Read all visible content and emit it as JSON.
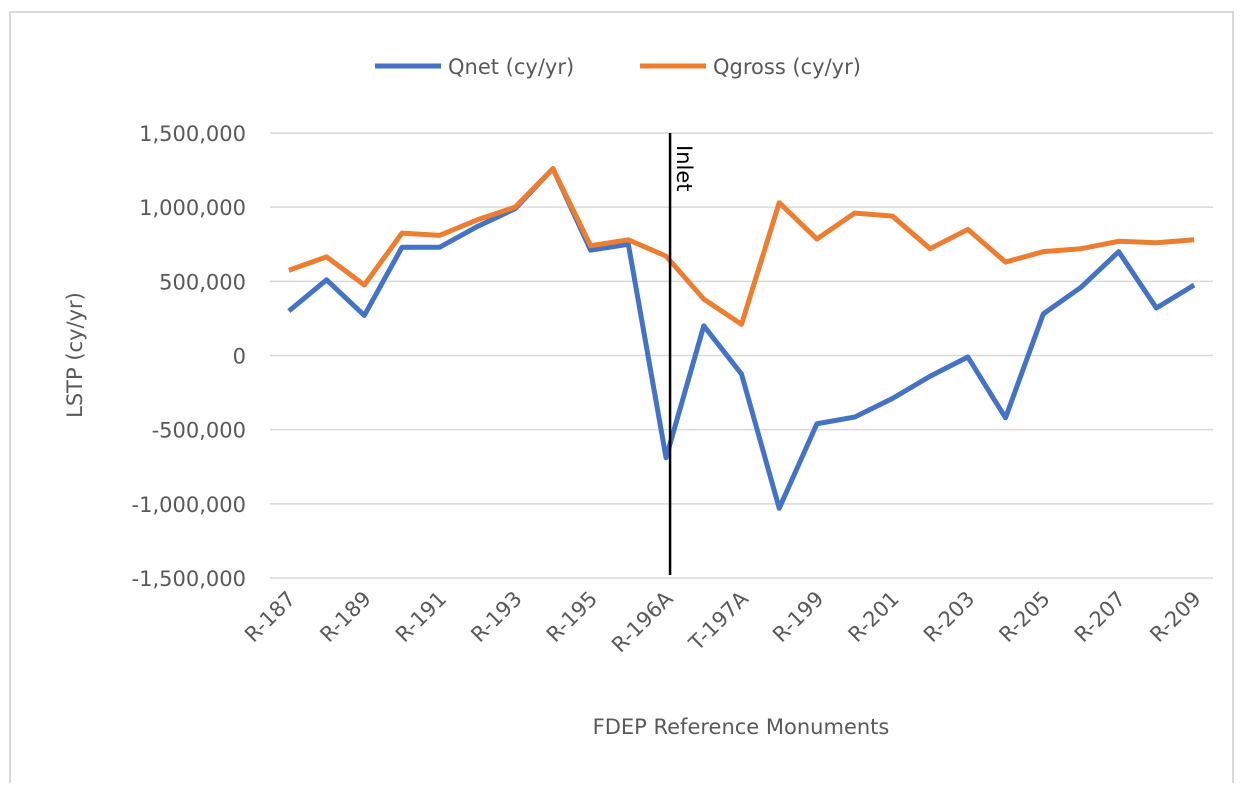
{
  "chart_data": {
    "type": "line",
    "x_label": "FDEP Reference  Monuments",
    "y_label": "LSTP (cy/yr)",
    "categories": [
      "R-187",
      null,
      "R-189",
      null,
      "R-191",
      null,
      "R-193",
      null,
      "R-195",
      null,
      "R-196A",
      null,
      "T-197A",
      null,
      "R-199",
      null,
      "R-201",
      null,
      "R-203",
      null,
      "R-205",
      null,
      "R-207",
      null,
      "R-209"
    ],
    "series": [
      {
        "name": "Qnet (cy/yr)",
        "color": "#4472c4",
        "values": [
          300000,
          510000,
          270000,
          730000,
          730000,
          870000,
          990000,
          1260000,
          710000,
          750000,
          -690000,
          200000,
          -125000,
          -1030000,
          -460000,
          -415000,
          -290000,
          -140000,
          -10000,
          -420000,
          280000,
          460000,
          700000,
          320000,
          475000
        ]
      },
      {
        "name": "Qgross (cy/yr)",
        "color": "#ed7d31",
        "values": [
          575000,
          665000,
          475000,
          825000,
          810000,
          915000,
          1000000,
          1260000,
          740000,
          780000,
          670000,
          380000,
          210000,
          1030000,
          785000,
          960000,
          940000,
          720000,
          850000,
          630000,
          700000,
          720000,
          770000,
          760000,
          780000
        ]
      }
    ],
    "ylim": [
      -1500000,
      1500000
    ],
    "yticks": [
      {
        "value": -1500000,
        "label": "-1,500,000"
      },
      {
        "value": -1000000,
        "label": "-1,000,000"
      },
      {
        "value": -500000,
        "label": "-500,000"
      },
      0,
      {
        "value": 500000,
        "label": "500,000"
      },
      {
        "value": 1000000,
        "label": "1,000,000"
      },
      {
        "value": 1500000,
        "label": "1,500,000"
      }
    ],
    "grid": true,
    "legend": "top",
    "annotation": {
      "text": "Inlet",
      "category": "R-196A"
    }
  }
}
